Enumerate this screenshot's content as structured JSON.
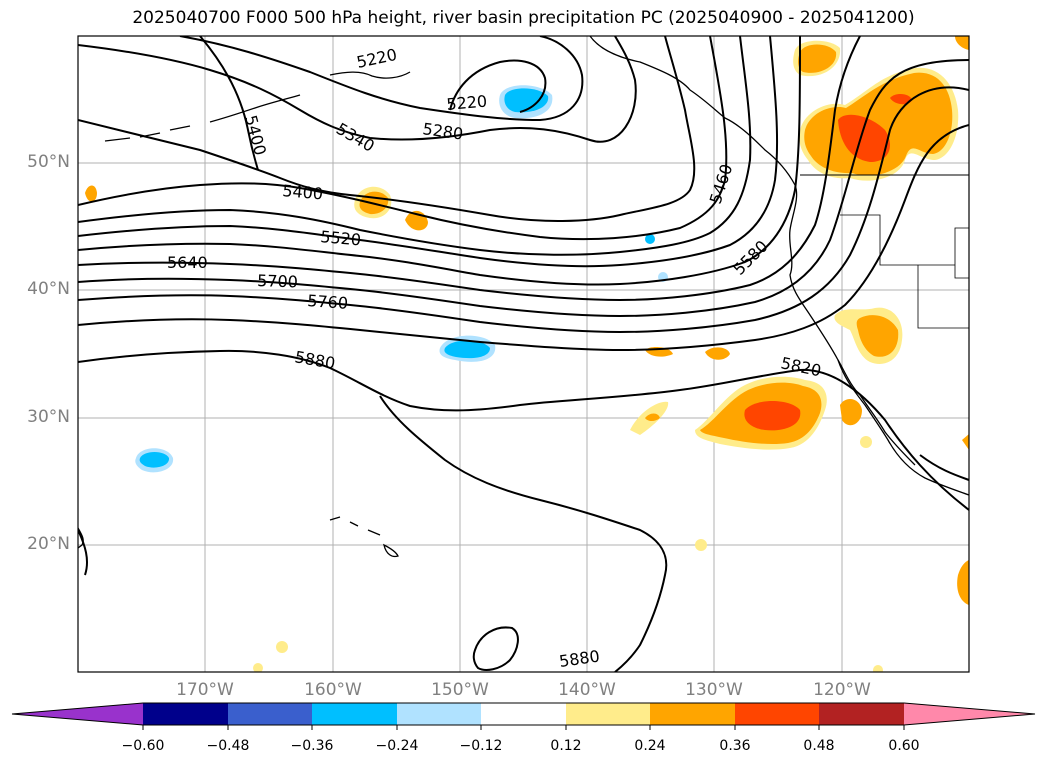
{
  "title": "2025040700 F000 500 hPa height, river basin precipitation PC (2025040900 - 2025041200)",
  "lat_labels": [
    "50°N",
    "40°N",
    "30°N",
    "20°N"
  ],
  "lon_labels": [
    "170°W",
    "160°W",
    "150°W",
    "140°W",
    "130°W",
    "120°W"
  ],
  "contour_labels": [
    "5220",
    "5220",
    "5280",
    "5340",
    "5400",
    "5400",
    "5460",
    "5520",
    "5580",
    "5640",
    "5700",
    "5760",
    "5820",
    "5880",
    "5880"
  ],
  "colorbar": {
    "ticks": [
      "−0.60",
      "−0.48",
      "−0.36",
      "−0.24",
      "−0.12",
      "0.12",
      "0.24",
      "0.36",
      "0.48",
      "0.60"
    ],
    "colors": [
      "#9932cc",
      "#00008b",
      "#3a5fcd",
      "#00bfff",
      "#b0e2ff",
      "#ffffff",
      "#ffec8b",
      "#ffa500",
      "#ff4500",
      "#b22222",
      "#ff88aa"
    ]
  }
}
